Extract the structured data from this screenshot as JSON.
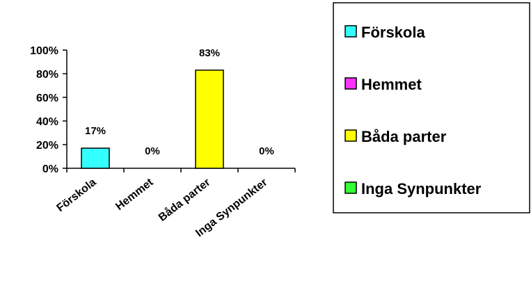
{
  "chart_data": {
    "type": "bar",
    "categories": [
      "Förskola",
      "Hemmet",
      "Båda parter",
      "Inga Synpunkter"
    ],
    "values": [
      17,
      0,
      83,
      0
    ],
    "data_labels": [
      "17%",
      "0%",
      "83%",
      "0%"
    ],
    "colors": [
      "#33ffff",
      "#ff33ff",
      "#ffff00",
      "#33ff33"
    ],
    "y_ticks": [
      0,
      20,
      40,
      60,
      80,
      100
    ],
    "y_tick_labels": [
      "0%",
      "20%",
      "40%",
      "60%",
      "80%",
      "100%"
    ],
    "ylim": [
      0,
      100
    ],
    "grid": false,
    "legend": {
      "placement": "right",
      "entries": [
        "Förskola",
        "Hemmet",
        "Båda parter",
        "Inga Synpunkter"
      ]
    }
  }
}
